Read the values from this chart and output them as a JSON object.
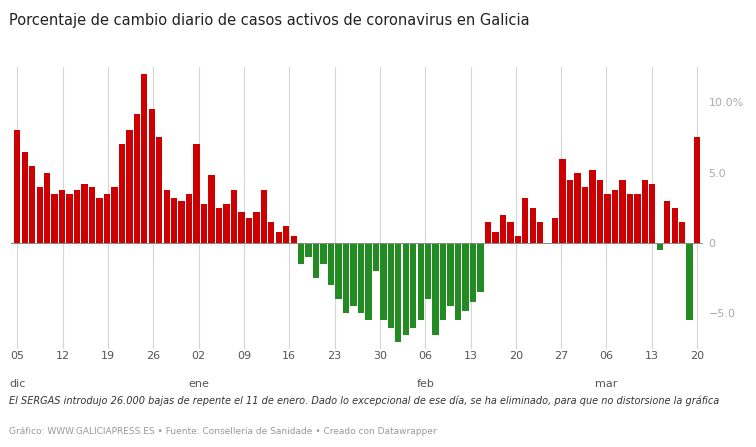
{
  "title": "Porcentaje de cambio diario de casos activos de coronavirus en Galicia",
  "footnote": "El SERGAS introdujo 26.000 bajas de repente el 11 de enero. Dado lo excepcional de ese día, se ha eliminado, para que no distorsione la gráfica",
  "source": "Gráfico: WWW.GALICIAPRESS.ES • Fuente: Consellería de Sanidade • Creado con Datawrapper",
  "ylim": [
    -7.5,
    12.5
  ],
  "color_positive": "#cc0000",
  "color_negative": "#228B22",
  "background_color": "#ffffff",
  "x_tick_dates": [
    "05",
    "12",
    "19",
    "26",
    "02",
    "09",
    "16",
    "23",
    "30",
    "06",
    "13",
    "20",
    "27",
    "06",
    "13",
    "20"
  ],
  "x_tick_months": [
    "dic",
    "",
    "",
    "",
    "ene",
    "",
    "",
    "",
    "",
    "feb",
    "",
    "",
    "",
    "mar",
    "",
    ""
  ],
  "values": [
    8.0,
    6.5,
    5.5,
    4.0,
    5.0,
    3.5,
    3.8,
    3.5,
    3.8,
    4.2,
    4.0,
    3.2,
    3.5,
    4.0,
    7.0,
    8.0,
    9.2,
    12.0,
    9.5,
    7.5,
    3.8,
    3.2,
    3.0,
    3.5,
    7.0,
    2.8,
    4.8,
    2.5,
    2.8,
    3.8,
    2.2,
    1.8,
    2.2,
    3.8,
    1.5,
    0.8,
    1.2,
    0.5,
    -1.5,
    -1.0,
    -2.5,
    -1.5,
    -3.0,
    -4.0,
    -5.0,
    -4.5,
    -5.0,
    -5.5,
    -2.0,
    -5.5,
    -6.0,
    -7.0,
    -6.5,
    -6.0,
    -5.5,
    -4.0,
    -6.5,
    -5.5,
    -4.5,
    -5.5,
    -4.8,
    -4.2,
    -3.5,
    1.5,
    0.8,
    2.0,
    1.5,
    0.5,
    3.2,
    2.5,
    1.5,
    0.0,
    1.8,
    6.0,
    4.5,
    5.0,
    4.0,
    5.2,
    4.5,
    3.5,
    3.8,
    4.5,
    3.5,
    3.5,
    4.5,
    4.2,
    -0.5,
    3.0,
    2.5,
    1.5,
    -5.5,
    7.5
  ]
}
